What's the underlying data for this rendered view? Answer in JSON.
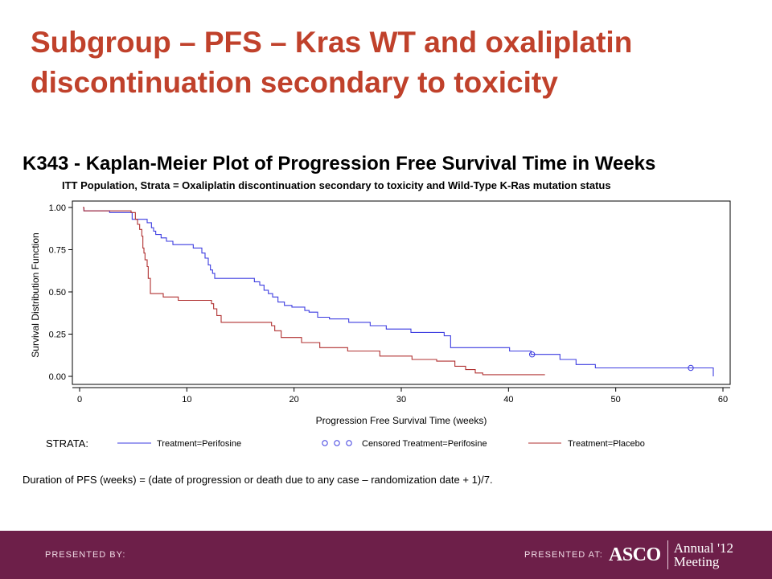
{
  "slide": {
    "title": "Subgroup – PFS – Kras WT and oxaliplatin discontinuation secondary to toxicity",
    "footnote": "Duration of PFS (weeks) = (date of progression or death due to any case – randomization date + 1)/7.",
    "footer": {
      "presented_by": "PRESENTED BY:",
      "presented_at": "PRESENTED AT:",
      "logo_text": "ASCO",
      "meeting_line1": "Annual '12",
      "meeting_line2": "Meeting",
      "background_color": "#6d1f49"
    }
  },
  "chart_data": {
    "type": "line",
    "step": true,
    "title": "K343 - Kaplan-Meier Plot of Progression Free Survival Time in Weeks",
    "subtitle": "ITT Population, Strata = Oxaliplatin discontinuation secondary to toxicity and Wild-Type K-Ras mutation status",
    "xlabel": "Progression Free Survival Time (weeks)",
    "ylabel": "Survival Distribution Function",
    "xlim": [
      0,
      60
    ],
    "ylim": [
      0,
      1
    ],
    "xticks": [
      "0",
      "10",
      "20",
      "30",
      "40",
      "50",
      "60"
    ],
    "yticks": [
      "0.00",
      "0.25",
      "0.50",
      "0.75",
      "1.00"
    ],
    "legend": {
      "prefix": "STRATA:",
      "placement": "bottom",
      "entries": [
        {
          "label": "Treatment=Perifosine",
          "kind": "line",
          "color": "#3c3ce0"
        },
        {
          "label": "Censored Treatment=Perifosine",
          "kind": "circles",
          "color": "#3c3ce0"
        },
        {
          "label": "Treatment=Placebo",
          "kind": "line",
          "color": "#b03030"
        }
      ]
    },
    "series": [
      {
        "name": "Treatment=Perifosine",
        "color": "#3c3ce0",
        "x": [
          0.3,
          0.4,
          2.8,
          4.9,
          6.3,
          6.7,
          6.9,
          7.1,
          7.6,
          8.1,
          8.7,
          9.5,
          10.6,
          11.4,
          11.7,
          12.0,
          12.2,
          12.4,
          12.6,
          13.3,
          16.3,
          16.8,
          17.2,
          17.6,
          18.0,
          18.5,
          19.1,
          19.8,
          21.0,
          21.4,
          22.2,
          23.3,
          25.1,
          27.1,
          28.6,
          30.9,
          34.0,
          34.6,
          40.1,
          42.1,
          44.8,
          46.3,
          48.1,
          59.1
        ],
        "y": [
          1.0,
          0.98,
          0.97,
          0.93,
          0.91,
          0.88,
          0.86,
          0.84,
          0.82,
          0.8,
          0.78,
          0.78,
          0.76,
          0.73,
          0.7,
          0.66,
          0.63,
          0.61,
          0.58,
          0.58,
          0.56,
          0.54,
          0.51,
          0.49,
          0.47,
          0.44,
          0.42,
          0.41,
          0.39,
          0.38,
          0.35,
          0.34,
          0.32,
          0.3,
          0.28,
          0.26,
          0.24,
          0.17,
          0.15,
          0.13,
          0.1,
          0.07,
          0.05,
          0.0
        ],
        "censored": [
          [
            42.2,
            0.13
          ],
          [
            57.0,
            0.05
          ]
        ]
      },
      {
        "name": "Treatment=Placebo",
        "color": "#b03030",
        "x": [
          0.3,
          0.4,
          4.8,
          5.2,
          5.4,
          5.6,
          5.8,
          5.9,
          6.0,
          6.1,
          6.3,
          6.4,
          6.6,
          7.8,
          9.2,
          12.3,
          12.5,
          12.8,
          13.2,
          17.2,
          17.9,
          18.2,
          18.8,
          20.7,
          22.4,
          25.0,
          28.0,
          31.0,
          33.3,
          35.0,
          36.0,
          36.9,
          37.6,
          43.4
        ],
        "y": [
          1.0,
          0.98,
          0.97,
          0.93,
          0.9,
          0.87,
          0.83,
          0.76,
          0.73,
          0.69,
          0.65,
          0.58,
          0.49,
          0.47,
          0.45,
          0.43,
          0.4,
          0.36,
          0.32,
          0.32,
          0.3,
          0.27,
          0.23,
          0.2,
          0.17,
          0.15,
          0.12,
          0.1,
          0.09,
          0.06,
          0.04,
          0.02,
          0.01,
          0.01
        ]
      }
    ]
  }
}
